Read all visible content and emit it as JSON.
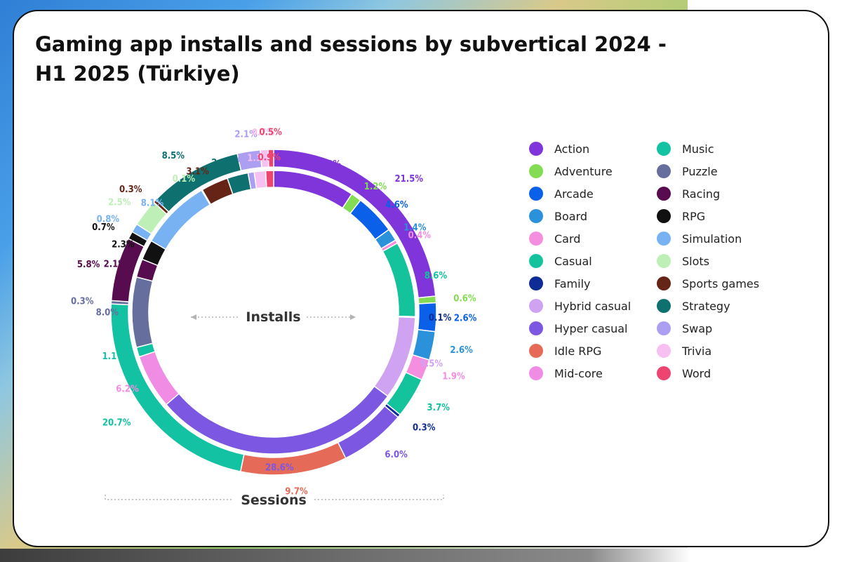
{
  "title": "Gaming app installs and sessions by subvertical 2024 - H1 2025 (Türkiye)",
  "chart_data": {
    "type": "donut",
    "categories": [
      "Action",
      "Adventure",
      "Arcade",
      "Board",
      "Card",
      "Casual",
      "Family",
      "Hybrid casual",
      "Hyper casual",
      "Idle RPG",
      "Mid-core",
      "Music",
      "Puzzle",
      "Racing",
      "RPG",
      "Simulation",
      "Slots",
      "Sports games",
      "Strategy",
      "Swap",
      "Trivia",
      "Word"
    ],
    "colors": {
      "Action": "#7f35d9",
      "Adventure": "#84dc54",
      "Arcade": "#0a60e8",
      "Board": "#2a91da",
      "Card": "#f68ee0",
      "Casual": "#14c29c",
      "Family": "#0f2c96",
      "Hybrid casual": "#cfa3f2",
      "Hyper casual": "#7b57e2",
      "Idle RPG": "#e66a58",
      "Mid-core": "#f08ce4",
      "Music": "#12c2a2",
      "Puzzle": "#666e9e",
      "Racing": "#560c4e",
      "RPG": "#111111",
      "Simulation": "#78b2f2",
      "Slots": "#bdefb7",
      "Sports games": "#652416",
      "Strategy": "#0f7070",
      "Swap": "#ac9ef0",
      "Trivia": "#f6c0f0",
      "Word": "#ee4470"
    },
    "series": [
      {
        "name": "Installs",
        "values": {
          "Action": 9.3,
          "Adventure": 1.2,
          "Arcade": 4.6,
          "Board": 1.4,
          "Card": 0.4,
          "Casual": 8.6,
          "Family": 0.1,
          "Hybrid casual": 9.5,
          "Hyper casual": 28.6,
          "Idle RPG": 0,
          "Mid-core": 6.2,
          "Music": 1.1,
          "Puzzle": 8.0,
          "Racing": 2.1,
          "RPG": 2.3,
          "Simulation": 8.1,
          "Slots": 0.1,
          "Sports games": 3.1,
          "Strategy": 2.4,
          "Swap": 0.7,
          "Trivia": 1.3,
          "Word": 0.9
        }
      },
      {
        "name": "Sessions",
        "values": {
          "Action": 21.5,
          "Adventure": 0.6,
          "Arcade": 2.6,
          "Board": 2.6,
          "Card": 1.9,
          "Casual": 3.7,
          "Family": 0.3,
          "Hybrid casual": 0,
          "Hyper casual": 6.0,
          "Idle RPG": 9.7,
          "Mid-core": 0,
          "Music": 20.7,
          "Puzzle": 0.3,
          "Racing": 5.8,
          "RPG": 0.7,
          "Simulation": 0.8,
          "Slots": 2.5,
          "Sports games": 0.3,
          "Strategy": 8.5,
          "Swap": 2.1,
          "Trivia": 0.7,
          "Word": 0.5
        }
      }
    ],
    "inner_order": [
      "Action",
      "Adventure",
      "Arcade",
      "Board",
      "Card",
      "Casual",
      "Family",
      "Hybrid casual",
      "Hyper casual",
      "Mid-core",
      "Music",
      "Puzzle",
      "Racing",
      "RPG",
      "Simulation",
      "Slots",
      "Sports games",
      "Strategy",
      "Swap",
      "Trivia",
      "Word"
    ],
    "outer_order": [
      "Action",
      "Adventure",
      "Arcade",
      "Board",
      "Card",
      "Casual",
      "Family",
      "Hyper casual",
      "Idle RPG",
      "Music",
      "Puzzle",
      "Racing",
      "RPG",
      "Simulation",
      "Slots",
      "Sports games",
      "Strategy",
      "Swap",
      "Trivia",
      "Word"
    ],
    "inner_label_text": {
      "Action": "9.3%",
      "Adventure": "1.2%",
      "Arcade": "4.6%",
      "Board": "1.4%",
      "Card": "0.4%",
      "Casual": "8.6%",
      "Family": "0.1%",
      "Hybrid casual": "9.5%",
      "Hyper casual": "28.6%",
      "Mid-core": "6.2%",
      "Music": "1.1%",
      "Puzzle": "8.0%",
      "Racing": "2.1%",
      "RPG": "2.3%",
      "Simulation": "8.1%",
      "Slots": "0.1%",
      "Sports games": "3.1%",
      "Strategy": "2.4%",
      "Swap": "0.7%",
      "Trivia": "1.3%",
      "Word": "0.9%"
    },
    "outer_label_text": {
      "Action": "21.5%",
      "Adventure": "0.6%",
      "Arcade": "2.6%",
      "Board": "2.6%",
      "Card": "1.9%",
      "Casual": "3.7%",
      "Family": "0.3%",
      "Hyper casual": "6.0%",
      "Idle RPG": "9.7%",
      "Music": "20.7%",
      "Puzzle": "0.3%",
      "Racing": "5.8%",
      "RPG": "0.7%",
      "Simulation": "0.8%",
      "Slots": "2.5%",
      "Sports games": "0.3%",
      "Strategy": "8.5%",
      "Swap": "2.1%",
      "Trivia": "0.7%",
      "Word": "0.5%"
    },
    "legend": {
      "placement": "right",
      "items": [
        "Action",
        "Adventure",
        "Arcade",
        "Board",
        "Card",
        "Casual",
        "Family",
        "Hybrid casual",
        "Hyper casual",
        "Idle RPG",
        "Mid-core",
        "Music",
        "Puzzle",
        "Racing",
        "RPG",
        "Simulation",
        "Slots",
        "Sports games",
        "Strategy",
        "Swap",
        "Trivia",
        "Word"
      ]
    },
    "ring_labels": {
      "inner": "Installs",
      "outer": "Sessions"
    }
  }
}
